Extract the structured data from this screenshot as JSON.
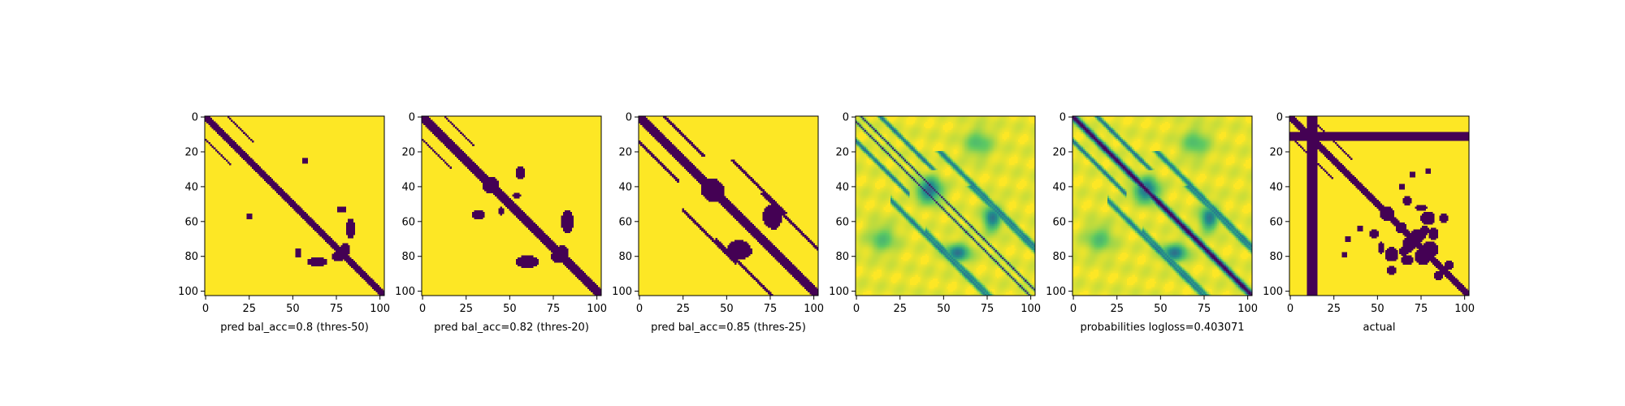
{
  "colors": {
    "viridis_low": "#440154",
    "viridis_mid": "#21918c",
    "viridis_light": "#7ad151",
    "viridis_high": "#fde725"
  },
  "chart_data": [
    {
      "type": "heatmap",
      "xlabel": "pred bal_acc=0.8 (thres-50)",
      "x_ticks": [
        0,
        25,
        50,
        75,
        100
      ],
      "y_ticks": [
        0,
        20,
        40,
        60,
        80,
        100
      ],
      "xlim": [
        0,
        103
      ],
      "ylim": [
        0,
        103
      ],
      "matrix_size": 103,
      "pattern": {
        "kind": "binary",
        "diag_halfwidth": 2,
        "side_bands": [
          {
            "start": 0,
            "end": 14,
            "offset": 13,
            "width": 1
          }
        ],
        "blobs": [
          {
            "cx": 83,
            "cy": 64,
            "rx": 2,
            "ry": 5
          },
          {
            "cx": 76,
            "cy": 80,
            "rx": 3,
            "ry": 2
          },
          {
            "cx": 57,
            "cy": 25,
            "rx": 1,
            "ry": 1
          },
          {
            "cx": 79,
            "cy": 53,
            "rx": 1,
            "ry": 1
          },
          {
            "cx": 53,
            "cy": 77,
            "rx": 1,
            "ry": 1
          }
        ]
      }
    },
    {
      "type": "heatmap",
      "xlabel": "pred bal_acc=0.82 (thres-20)",
      "x_ticks": [
        0,
        25,
        50,
        75,
        100
      ],
      "y_ticks": [
        0,
        20,
        40,
        60,
        80,
        100
      ],
      "xlim": [
        0,
        103
      ],
      "ylim": [
        0,
        103
      ],
      "matrix_size": 103,
      "pattern": {
        "kind": "binary",
        "diag_halfwidth": 3,
        "side_bands": [
          {
            "start": 0,
            "end": 16,
            "offset": 13,
            "width": 1
          }
        ],
        "blobs": [
          {
            "cx": 83,
            "cy": 60,
            "rx": 3,
            "ry": 6
          },
          {
            "cx": 78,
            "cy": 80,
            "rx": 4,
            "ry": 3
          },
          {
            "cx": 56,
            "cy": 32,
            "rx": 2,
            "ry": 3
          },
          {
            "cx": 39,
            "cy": 40,
            "rx": 4,
            "ry": 3
          },
          {
            "cx": 45,
            "cy": 54,
            "rx": 1,
            "ry": 2
          }
        ]
      }
    },
    {
      "type": "heatmap",
      "xlabel": "pred bal_acc=0.85 (thres-25)",
      "x_ticks": [
        0,
        25,
        50,
        75,
        100
      ],
      "y_ticks": [
        0,
        20,
        40,
        60,
        80,
        100
      ],
      "xlim": [
        0,
        103
      ],
      "ylim": [
        0,
        103
      ],
      "matrix_size": 103,
      "pattern": {
        "kind": "binary",
        "diag_halfwidth": 3,
        "side_bands": [
          {
            "start": 0,
            "end": 22,
            "offset": 14,
            "width": 2
          },
          {
            "start": 25,
            "end": 55,
            "offset": 28,
            "width": 2
          },
          {
            "start": 44,
            "end": 78,
            "offset": 26,
            "width": 2
          }
        ],
        "blobs": [
          {
            "cx": 42,
            "cy": 42,
            "rx": 6,
            "ry": 5
          },
          {
            "cx": 77,
            "cy": 58,
            "rx": 4,
            "ry": 6
          },
          {
            "cx": 57,
            "cy": 76,
            "rx": 6,
            "ry": 5
          }
        ]
      }
    },
    {
      "type": "heatmap",
      "xlabel": "",
      "x_ticks": [
        0,
        25,
        50,
        75,
        100
      ],
      "y_ticks": [
        0,
        20,
        40,
        60,
        80,
        100
      ],
      "xlim": [
        0,
        103
      ],
      "ylim": [
        0,
        103
      ],
      "matrix_size": 103,
      "pattern": {
        "kind": "continuous",
        "diag_strength": 0,
        "twin_diagonals": [
          -3,
          3
        ],
        "side_bands": [
          {
            "start": 0,
            "end": 30,
            "offset": 14,
            "width": 2,
            "strength": 0.6
          },
          {
            "start": 20,
            "end": 80,
            "offset": 28,
            "width": 3,
            "strength": 0.55
          },
          {
            "start": 40,
            "end": 100,
            "offset": 26,
            "width": 3,
            "strength": 0.5
          }
        ],
        "blobs": [
          {
            "cx": 42,
            "cy": 42,
            "rx": 7,
            "ry": 6,
            "strength": 0.6
          },
          {
            "cx": 78,
            "cy": 58,
            "rx": 5,
            "ry": 7,
            "strength": 0.55
          },
          {
            "cx": 58,
            "cy": 78,
            "rx": 7,
            "ry": 5,
            "strength": 0.55
          },
          {
            "cx": 15,
            "cy": 70,
            "rx": 8,
            "ry": 8,
            "strength": 0.25
          },
          {
            "cx": 70,
            "cy": 15,
            "rx": 8,
            "ry": 8,
            "strength": 0.25
          }
        ]
      }
    },
    {
      "type": "heatmap",
      "xlabel": "probabilities logloss=0.403071",
      "x_ticks": [
        0,
        25,
        50,
        75,
        100
      ],
      "y_ticks": [
        0,
        20,
        40,
        60,
        80,
        100
      ],
      "xlim": [
        0,
        103
      ],
      "ylim": [
        0,
        103
      ],
      "matrix_size": 103,
      "pattern": {
        "kind": "continuous",
        "diag_strength": 1,
        "twin_diagonals": [],
        "side_bands": [
          {
            "start": 0,
            "end": 30,
            "offset": 14,
            "width": 2,
            "strength": 0.6
          },
          {
            "start": 20,
            "end": 80,
            "offset": 28,
            "width": 3,
            "strength": 0.55
          },
          {
            "start": 40,
            "end": 100,
            "offset": 26,
            "width": 3,
            "strength": 0.5
          }
        ],
        "blobs": [
          {
            "cx": 42,
            "cy": 42,
            "rx": 7,
            "ry": 6,
            "strength": 0.6
          },
          {
            "cx": 78,
            "cy": 58,
            "rx": 5,
            "ry": 7,
            "strength": 0.55
          },
          {
            "cx": 58,
            "cy": 78,
            "rx": 7,
            "ry": 5,
            "strength": 0.55
          },
          {
            "cx": 15,
            "cy": 70,
            "rx": 8,
            "ry": 8,
            "strength": 0.25
          },
          {
            "cx": 70,
            "cy": 15,
            "rx": 8,
            "ry": 8,
            "strength": 0.25
          }
        ]
      }
    },
    {
      "type": "heatmap",
      "xlabel": "actual",
      "x_ticks": [
        0,
        25,
        50,
        75,
        100
      ],
      "y_ticks": [
        0,
        20,
        40,
        60,
        80,
        100
      ],
      "xlim": [
        0,
        103
      ],
      "ylim": [
        0,
        103
      ],
      "matrix_size": 103,
      "pattern": {
        "kind": "binary",
        "diag_halfwidth": 2,
        "full_rows": [
          {
            "start": 9,
            "end": 13
          }
        ],
        "full_cols": [
          {
            "start": 10,
            "end": 15
          }
        ],
        "side_bands": [
          {
            "start": 0,
            "end": 24,
            "offset": 11,
            "width": 1
          }
        ],
        "blobs": [
          {
            "cx": 64,
            "cy": 40,
            "rx": 1,
            "ry": 1
          },
          {
            "cx": 75,
            "cy": 52,
            "rx": 3,
            "ry": 1
          },
          {
            "cx": 78,
            "cy": 58,
            "rx": 3,
            "ry": 3
          },
          {
            "cx": 56,
            "cy": 55,
            "rx": 3,
            "ry": 3
          },
          {
            "cx": 73,
            "cy": 68,
            "rx": 4,
            "ry": 3
          },
          {
            "cx": 80,
            "cy": 76,
            "rx": 4,
            "ry": 4
          },
          {
            "cx": 58,
            "cy": 80,
            "rx": 3,
            "ry": 2
          },
          {
            "cx": 67,
            "cy": 82,
            "rx": 3,
            "ry": 2
          },
          {
            "cx": 65,
            "cy": 77,
            "rx": 2,
            "ry": 2
          },
          {
            "cx": 67,
            "cy": 48,
            "rx": 2,
            "ry": 2
          },
          {
            "cx": 88,
            "cy": 58,
            "rx": 2,
            "ry": 2
          },
          {
            "cx": 64,
            "cy": 63,
            "rx": 2,
            "ry": 2
          },
          {
            "cx": 91,
            "cy": 85,
            "rx": 2,
            "ry": 2
          },
          {
            "cx": 31,
            "cy": 79,
            "rx": 1,
            "ry": 1
          },
          {
            "cx": 33,
            "cy": 70,
            "rx": 1,
            "ry": 1
          }
        ]
      }
    }
  ]
}
